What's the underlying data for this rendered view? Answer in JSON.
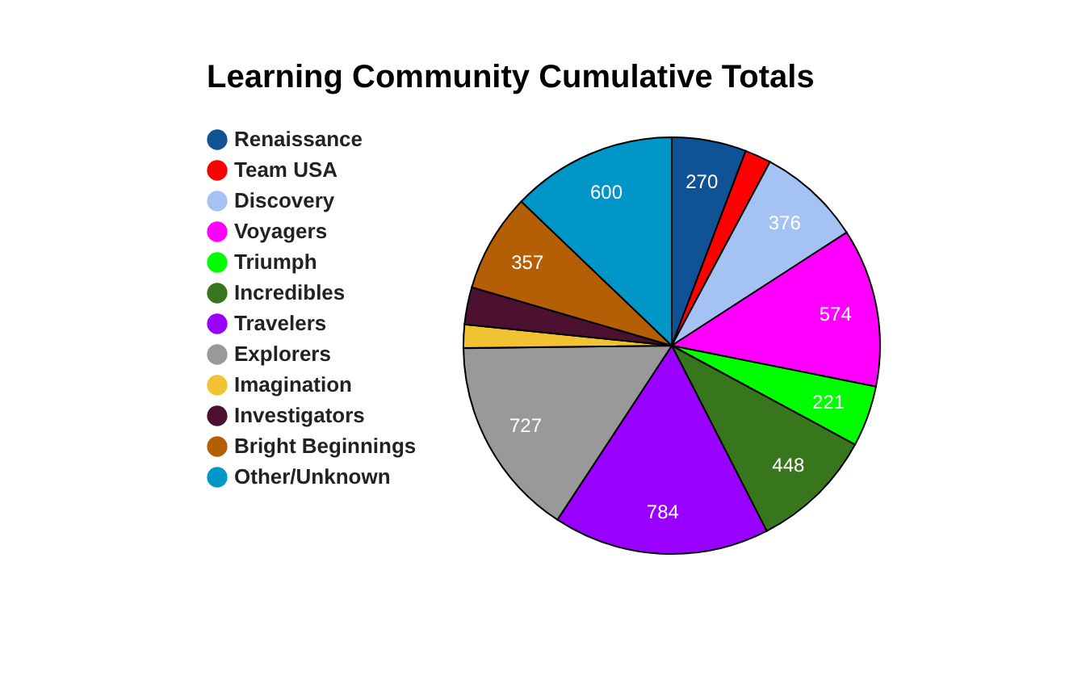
{
  "chart_data": {
    "type": "pie",
    "title": "Learning Community Cumulative Totals",
    "categories": [
      "Renaissance",
      "Team USA",
      "Discovery",
      "Voyagers",
      "Triumph",
      "Incredibles",
      "Travelers",
      "Explorers",
      "Imagination",
      "Investigators",
      "Bright Beginnings",
      "Other/Unknown"
    ],
    "values": [
      270,
      95,
      376,
      574,
      221,
      448,
      784,
      727,
      85,
      135,
      357,
      600
    ],
    "value_labels": [
      "270",
      null,
      "376",
      "574",
      "221",
      "448",
      "784",
      "727",
      null,
      null,
      "357",
      "600"
    ],
    "colors": [
      "#0f5296",
      "#ff0000",
      "#a4c2f4",
      "#ff00ff",
      "#00ff00",
      "#38761d",
      "#9900ff",
      "#999999",
      "#f1c232",
      "#4c1130",
      "#b45f06",
      "#0097c8"
    ],
    "legend": "top left"
  }
}
